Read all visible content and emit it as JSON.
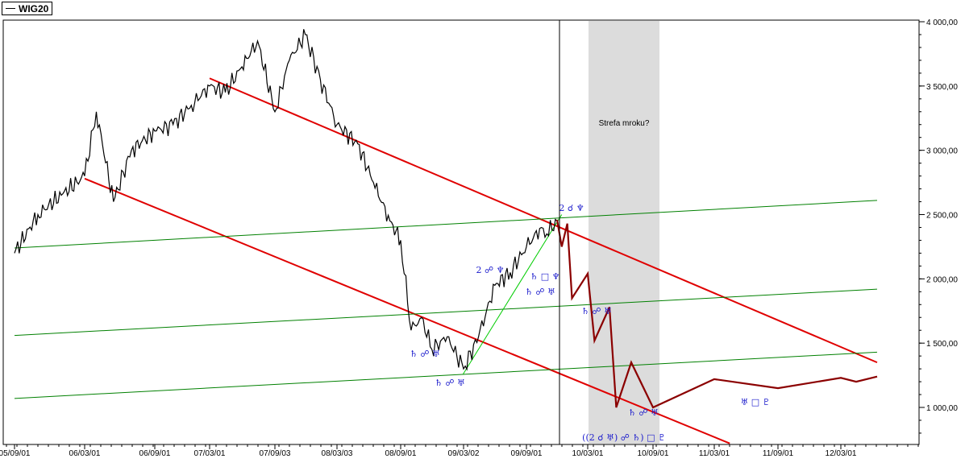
{
  "legend": {
    "label": "WIG20"
  },
  "chart_data": {
    "type": "line",
    "title": "",
    "xlabel": "",
    "ylabel": "",
    "x_tick_labels": [
      "05/09/01",
      "06/03/01",
      "06/09/01",
      "07/03/01",
      "07/09/03",
      "08/03/03",
      "08/09/01",
      "09/03/02",
      "09/09/01",
      "10/03/01",
      "10/09/01",
      "11/03/01",
      "11/09/01",
      "12/03/01"
    ],
    "y_tick_labels": [
      "1 000,00",
      "1 500,00",
      "2 000,00",
      "2 500,00",
      "3 000,00",
      "3 500,00",
      "4 000,00"
    ],
    "ylim": [
      700,
      4050
    ],
    "grid": false,
    "shaded_region_label": "Strefa mroku?",
    "series": [
      {
        "name": "WIG20",
        "x": [
          "05/09/01",
          "05/11/01",
          "06/01/01",
          "06/03/01",
          "06/04/01",
          "06/05/15",
          "06/07/01",
          "06/09/01",
          "06/11/01",
          "07/01/01",
          "07/03/01",
          "07/04/15",
          "07/06/01",
          "07/07/15",
          "07/09/03",
          "07/10/15",
          "07/12/01",
          "08/01/15",
          "08/03/03",
          "08/05/01",
          "08/06/15",
          "08/08/01",
          "08/09/01",
          "08/10/01",
          "08/11/01",
          "08/12/01",
          "09/01/15",
          "09/03/02",
          "09/04/15",
          "09/06/01",
          "09/07/15",
          "09/09/01",
          "09/10/15",
          "09/11/01",
          "09/12/01"
        ],
        "values": [
          2200,
          2500,
          2650,
          2800,
          3300,
          2600,
          3000,
          3150,
          3200,
          3350,
          3500,
          3450,
          3650,
          3850,
          3300,
          3700,
          3900,
          3550,
          3200,
          3050,
          2750,
          2450,
          2300,
          1600,
          1700,
          1450,
          1550,
          1300,
          1550,
          1950,
          2050,
          2250,
          2400,
          2350,
          2450
        ]
      },
      {
        "name": "",
        "x": [
          "09/12/01",
          "09/12/15",
          "10/01/01",
          "10/01/15",
          "10/03/01",
          "10/03/20",
          "10/05/01",
          "10/05/20",
          "10/07/01",
          "10/09/01",
          "11/03/01",
          "11/09/01",
          "12/03/01",
          "12/04/15",
          "12/06/15"
        ],
        "values": [
          2460,
          2250,
          2430,
          1850,
          2040,
          1520,
          1780,
          1000,
          1350,
          1000,
          1220,
          1150,
          1230,
          1200,
          1240
        ]
      }
    ],
    "trendlines": [
      {
        "name": "",
        "color": "#e00000",
        "points": [
          [
            "07/03/01",
            3560
          ],
          [
            "12/06/15",
            1350
          ]
        ]
      },
      {
        "name": "",
        "color": "#e00000",
        "points": [
          [
            "06/03/01",
            2780
          ],
          [
            "11/04/15",
            720
          ]
        ]
      },
      {
        "name": "",
        "color": "#008000",
        "points": [
          [
            "05/09/01",
            2240
          ],
          [
            "12/06/15",
            2610
          ]
        ]
      },
      {
        "name": "",
        "color": "#008000",
        "points": [
          [
            "05/09/01",
            1560
          ],
          [
            "12/06/15",
            1920
          ]
        ]
      },
      {
        "name": "",
        "color": "#008000",
        "points": [
          [
            "05/09/01",
            1070
          ],
          [
            "12/06/15",
            1430
          ]
        ]
      },
      {
        "name": "",
        "color": "#00cc00",
        "points": [
          [
            "09/03/01",
            1260
          ],
          [
            "09/12/15",
            2500
          ]
        ]
      }
    ],
    "annotations": [
      "2 ☌ ♆",
      "2 ☍ ♆",
      "♄ □ ♆",
      "♄ ☍ ♅",
      "♄ ☍ ♅",
      "♄ ☍ ♅",
      "♄ ☍ ♅",
      "♄ ☍ ♅",
      "♅ □ ♇",
      "((2 ☌ ♅) ☍ ♄) □ ♇"
    ]
  },
  "colors": {
    "price": "#000000",
    "forecast": "#8b0000",
    "channel": "#e00000",
    "support": "#008000",
    "annotation": "#1a1acc",
    "shade": "#dcdcdc"
  }
}
